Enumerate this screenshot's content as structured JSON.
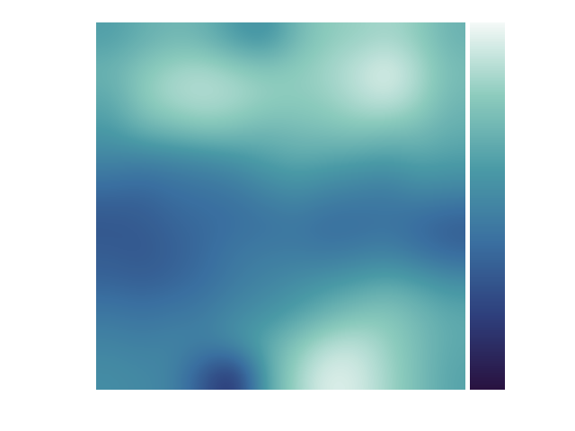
{
  "chart_data": {
    "type": "heatmap",
    "cells": [
      [
        0.62,
        0.68,
        0.72,
        0.7,
        0.6,
        0.55,
        0.72,
        0.8,
        0.82,
        0.85,
        0.8,
        0.7
      ],
      [
        0.7,
        0.78,
        0.84,
        0.86,
        0.82,
        0.78,
        0.8,
        0.84,
        0.9,
        0.96,
        0.86,
        0.74
      ],
      [
        0.66,
        0.8,
        0.86,
        0.88,
        0.86,
        0.82,
        0.8,
        0.82,
        0.88,
        0.92,
        0.84,
        0.72
      ],
      [
        0.6,
        0.7,
        0.74,
        0.78,
        0.76,
        0.72,
        0.74,
        0.76,
        0.78,
        0.76,
        0.74,
        0.68
      ],
      [
        0.5,
        0.48,
        0.5,
        0.52,
        0.56,
        0.62,
        0.66,
        0.64,
        0.62,
        0.6,
        0.64,
        0.62
      ],
      [
        0.38,
        0.36,
        0.4,
        0.42,
        0.44,
        0.5,
        0.54,
        0.5,
        0.48,
        0.46,
        0.52,
        0.5
      ],
      [
        0.3,
        0.32,
        0.36,
        0.38,
        0.4,
        0.42,
        0.44,
        0.4,
        0.4,
        0.42,
        0.38,
        0.34
      ],
      [
        0.32,
        0.3,
        0.34,
        0.38,
        0.44,
        0.46,
        0.46,
        0.44,
        0.46,
        0.48,
        0.42,
        0.36
      ],
      [
        0.36,
        0.34,
        0.36,
        0.4,
        0.46,
        0.5,
        0.54,
        0.58,
        0.62,
        0.66,
        0.62,
        0.56
      ],
      [
        0.44,
        0.42,
        0.44,
        0.46,
        0.52,
        0.56,
        0.62,
        0.7,
        0.76,
        0.78,
        0.72,
        0.66
      ],
      [
        0.5,
        0.48,
        0.5,
        0.48,
        0.56,
        0.66,
        0.78,
        0.88,
        0.9,
        0.82,
        0.74,
        0.66
      ],
      [
        0.54,
        0.52,
        0.5,
        0.3,
        0.12,
        0.64,
        0.84,
        0.96,
        0.94,
        0.84,
        0.74,
        0.64
      ]
    ],
    "colorbar_range": [
      0,
      1
    ],
    "colorbar_ticks": [],
    "tick_labels": false
  }
}
